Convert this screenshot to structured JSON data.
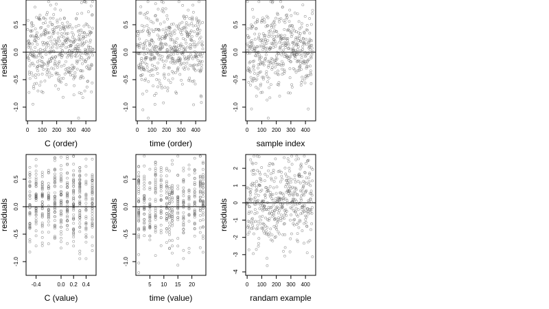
{
  "chart_data": [
    {
      "type": "scatter",
      "xlabel": "C (order)",
      "ylabel": "residuals",
      "xlim": [
        -10,
        470
      ],
      "ylim": [
        -1.25,
        0.95
      ],
      "xticks": [
        0,
        100,
        200,
        300,
        400
      ],
      "yticks": [
        -1.0,
        -0.5,
        0.0,
        0.5
      ],
      "ytick_labels": [
        "-1.0",
        "-0.5",
        "0.0",
        "0.5"
      ],
      "hline": 0,
      "x_mode": "index",
      "n": 450,
      "points_summary": "≈450 residuals plotted by order; mostly within -0.6 to 0.9, min ≈ -1.2, max ≈ 0.9"
    },
    {
      "type": "scatter",
      "xlabel": "time (order)",
      "ylabel": "residuals",
      "xlim": [
        -10,
        470
      ],
      "ylim": [
        -1.25,
        0.95
      ],
      "xticks": [
        0,
        100,
        200,
        300,
        400
      ],
      "yticks": [
        -1.0,
        -0.5,
        0.0,
        0.5
      ],
      "ytick_labels": [
        "-1.0",
        "-0.5",
        "0.0",
        "0.5"
      ],
      "hline": 0,
      "x_mode": "index",
      "n": 450
    },
    {
      "type": "scatter",
      "xlabel": "sample index",
      "ylabel": "residuals",
      "xlim": [
        -10,
        470
      ],
      "ylim": [
        -1.25,
        0.95
      ],
      "xticks": [
        0,
        100,
        200,
        300,
        400
      ],
      "yticks": [
        -1.0,
        -0.5,
        0.0,
        0.5
      ],
      "ytick_labels": [
        "-1.0",
        "-0.5",
        "0.0",
        "0.5"
      ],
      "hline": 0,
      "x_mode": "index",
      "n": 450
    },
    {
      "type": "scatter",
      "xlabel": "C (value)",
      "ylabel": "residuals",
      "xlim": [
        -0.56,
        0.56
      ],
      "ylim": [
        -1.25,
        0.95
      ],
      "xticks": [
        -0.4,
        0.0,
        0.2,
        0.4
      ],
      "xtick_labels": [
        "-0.4",
        "0.0",
        "0.2",
        "0.4"
      ],
      "yticks": [
        -1.0,
        -0.5,
        0.0,
        0.5
      ],
      "ytick_labels": [
        "-1.0",
        "-0.5",
        "0.0",
        "0.5"
      ],
      "hline": 0,
      "x_mode": "discrete",
      "x_levels": [
        -0.5,
        -0.4,
        -0.3,
        -0.2,
        -0.1,
        0.0,
        0.1,
        0.2,
        0.3,
        0.4,
        0.5
      ],
      "n": 450
    },
    {
      "type": "scatter",
      "xlabel": "time (value)",
      "ylabel": "residuals",
      "xlim": [
        0,
        25
      ],
      "ylim": [
        -1.25,
        0.95
      ],
      "xticks": [
        5,
        10,
        15,
        20
      ],
      "yticks": [
        -1.0,
        -0.5,
        0.0,
        0.5
      ],
      "ytick_labels": [
        "-1.0",
        "-0.5",
        "0.0",
        "0.5"
      ],
      "hline": 0,
      "x_mode": "discrete",
      "x_levels": [
        1,
        3,
        5,
        7,
        9,
        11,
        12,
        13,
        15,
        17,
        19,
        21,
        23,
        24
      ],
      "n": 450
    },
    {
      "type": "scatter",
      "xlabel": "randam example",
      "ylabel": "residuals",
      "xlim": [
        -10,
        470
      ],
      "ylim": [
        -4.2,
        2.8
      ],
      "xticks": [
        0,
        100,
        200,
        300,
        400
      ],
      "yticks": [
        -4,
        -3,
        -2,
        -1,
        0,
        1,
        2
      ],
      "ytick_labels": [
        "-4",
        "-3",
        "-2",
        "-1",
        "0",
        "1",
        "2"
      ],
      "hline": 0,
      "x_mode": "index",
      "n": 450
    }
  ]
}
